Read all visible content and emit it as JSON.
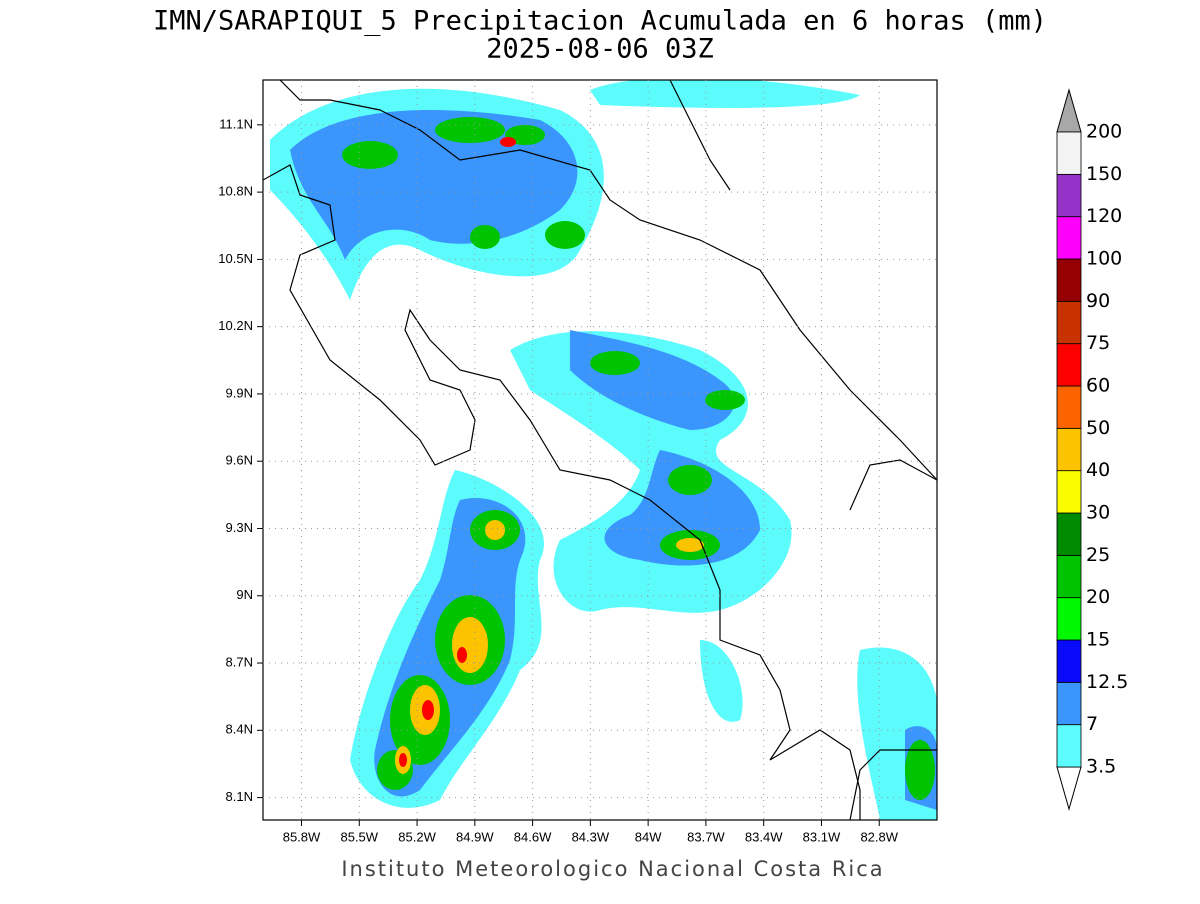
{
  "map": {
    "title": "IMN/SARAPIQUI_5 Precipitacion Acumulada en 6 horas (mm)",
    "subtitle": "2025-08-06 03Z",
    "footer": "Instituto Meteorologico Nacional Costa Rica",
    "xlim": [
      -86,
      -82.5
    ],
    "ylim": [
      8,
      11.3
    ],
    "xticks": [
      {
        "value": -85.8,
        "label": "85.8W"
      },
      {
        "value": -85.5,
        "label": "85.5W"
      },
      {
        "value": -85.2,
        "label": "85.2W"
      },
      {
        "value": -84.9,
        "label": "84.9W"
      },
      {
        "value": -84.6,
        "label": "84.6W"
      },
      {
        "value": -84.3,
        "label": "84.3W"
      },
      {
        "value": -84,
        "label": "84W"
      },
      {
        "value": -83.7,
        "label": "83.7W"
      },
      {
        "value": -83.4,
        "label": "83.4W"
      },
      {
        "value": -83.1,
        "label": "83.1W"
      },
      {
        "value": -82.8,
        "label": "82.8W"
      }
    ],
    "yticks": [
      {
        "value": 11.1,
        "label": "11.1N"
      },
      {
        "value": 10.8,
        "label": "10.8N"
      },
      {
        "value": 10.5,
        "label": "10.5N"
      },
      {
        "value": 10.2,
        "label": "10.2N"
      },
      {
        "value": 9.9,
        "label": "9.9N"
      },
      {
        "value": 9.6,
        "label": "9.6N"
      },
      {
        "value": 9.3,
        "label": "9.3N"
      },
      {
        "value": 9,
        "label": "9N"
      },
      {
        "value": 8.7,
        "label": "8.7N"
      },
      {
        "value": 8.4,
        "label": "8.4N"
      },
      {
        "value": 8.1,
        "label": "8.1N"
      }
    ],
    "grid": true,
    "colorbar": {
      "levels": [
        3.5,
        7,
        12.5,
        15,
        20,
        25,
        30,
        40,
        50,
        60,
        75,
        90,
        100,
        120,
        150,
        200
      ],
      "colors": [
        "#5cfcfc",
        "#3a96fc",
        "#0a0afc",
        "#00f800",
        "#00c400",
        "#008c00",
        "#fcfc00",
        "#fcc400",
        "#fc6400",
        "#fc0000",
        "#c83200",
        "#960000",
        "#fc00fc",
        "#9632c8",
        "#f4f4f4"
      ],
      "under_color": "#ffffff",
      "over_color": "#a8a8a8"
    }
  }
}
